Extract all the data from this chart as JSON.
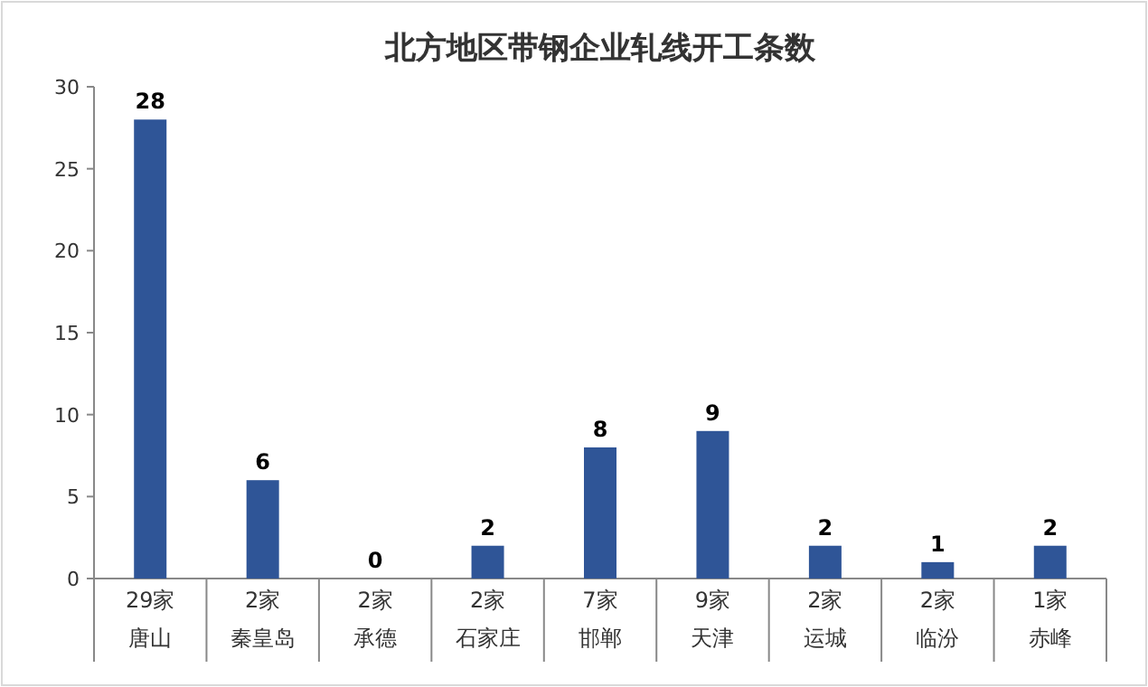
{
  "chart_data": {
    "type": "bar",
    "title": "北方地区带钢企业轧线开工条数",
    "categories": [
      "唐山",
      "秦皇岛",
      "承德",
      "石家庄",
      "邯郸",
      "天津",
      "运城",
      "临汾",
      "赤峰"
    ],
    "annotations": [
      "29家",
      "2家",
      "2家",
      "2家",
      "7家",
      "9家",
      "2家",
      "2家",
      "1家"
    ],
    "values": [
      28,
      6,
      0,
      2,
      8,
      9,
      2,
      1,
      2
    ],
    "color": "#2f5597",
    "ylim": [
      0,
      30
    ],
    "yticks": [
      0,
      5,
      10,
      15,
      20,
      25,
      30
    ],
    "data_labels": true
  }
}
